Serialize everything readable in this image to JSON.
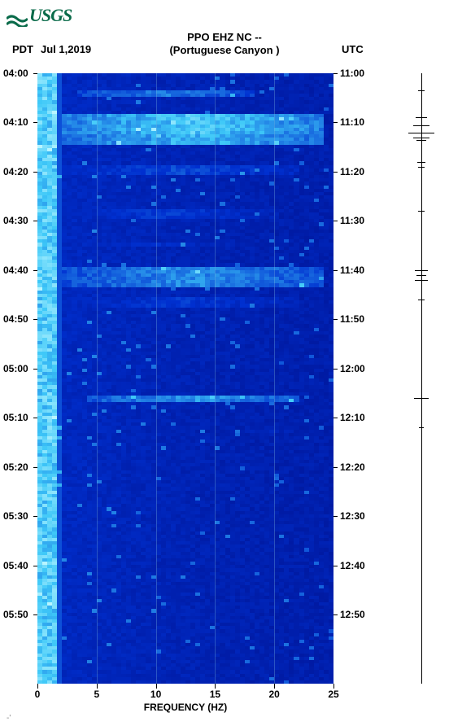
{
  "logo_text": "USGS",
  "logo_color": "#0a6b4a",
  "title_line1": "PPO EHZ NC --",
  "title_line2": "(Portuguese Canyon )",
  "left_tz_label": "PDT",
  "date_label": "Jul 1,2019",
  "right_tz_label": "UTC",
  "xlabel": "FREQUENCY (HZ)",
  "x_ticks": [
    0,
    5,
    10,
    15,
    20,
    25
  ],
  "x_range": [
    0,
    25
  ],
  "grid_x": [
    5,
    10,
    15,
    20
  ],
  "y_left_ticks": [
    "04:00",
    "04:10",
    "04:20",
    "04:30",
    "04:40",
    "04:50",
    "05:00",
    "05:10",
    "05:20",
    "05:30",
    "05:40",
    "05:50"
  ],
  "y_right_ticks": [
    "11:00",
    "11:10",
    "11:20",
    "11:30",
    "11:40",
    "11:50",
    "12:00",
    "12:10",
    "12:20",
    "12:30",
    "12:40",
    "12:50"
  ],
  "y_step_minutes": 10,
  "y_total_minutes": 124,
  "spectrogram": {
    "type": "spectrogram",
    "colormap": {
      "low": "#00006e",
      "mid": "#0030d0",
      "high": "#3ec8f8",
      "peak": "#b8f5ff"
    },
    "background_color": "#000080",
    "grid_color": "#7ab4dc",
    "low_freq_band": {
      "hz_from": 0,
      "hz_to": 1.6,
      "intensity": 0.9
    },
    "noise_floor_intensity": 0.25,
    "horizontal_bands": [
      {
        "t_from": 3,
        "t_to": 4.5,
        "intensity": 0.6,
        "hz_from": 3,
        "hz_to": 18
      },
      {
        "t_from": 8,
        "t_to": 12,
        "intensity": 0.85,
        "hz_from": 2,
        "hz_to": 24
      },
      {
        "t_from": 12,
        "t_to": 14,
        "intensity": 0.78,
        "hz_from": 2,
        "hz_to": 24
      },
      {
        "t_from": 18,
        "t_to": 20,
        "intensity": 0.45,
        "hz_from": 2,
        "hz_to": 22
      },
      {
        "t_from": 27,
        "t_to": 29,
        "intensity": 0.4,
        "hz_from": 2,
        "hz_to": 20
      },
      {
        "t_from": 34,
        "t_to": 35,
        "intensity": 0.35,
        "hz_from": 2,
        "hz_to": 18
      },
      {
        "t_from": 39,
        "t_to": 43,
        "intensity": 0.65,
        "hz_from": 2,
        "hz_to": 24
      },
      {
        "t_from": 45,
        "t_to": 47,
        "intensity": 0.4,
        "hz_from": 2,
        "hz_to": 22
      },
      {
        "t_from": 65,
        "t_to": 66.5,
        "intensity": 0.68,
        "hz_from": 4,
        "hz_to": 22
      },
      {
        "t_from": 72,
        "t_to": 73,
        "intensity": 0.3,
        "hz_from": 14,
        "hz_to": 24
      }
    ]
  },
  "side_trace": {
    "spikes": [
      {
        "t": 3.5,
        "amp": 4
      },
      {
        "t": 9,
        "amp": 7
      },
      {
        "t": 10.5,
        "amp": 10
      },
      {
        "t": 12,
        "amp": 16
      },
      {
        "t": 13,
        "amp": 10
      },
      {
        "t": 13.5,
        "amp": 6
      },
      {
        "t": 18,
        "amp": 5
      },
      {
        "t": 19,
        "amp": 4
      },
      {
        "t": 28,
        "amp": 4
      },
      {
        "t": 40,
        "amp": 8
      },
      {
        "t": 41,
        "amp": 6
      },
      {
        "t": 42,
        "amp": 8
      },
      {
        "t": 46,
        "amp": 4
      },
      {
        "t": 66,
        "amp": 9
      },
      {
        "t": 72,
        "amp": 3
      }
    ]
  },
  "footnote": "-'"
}
